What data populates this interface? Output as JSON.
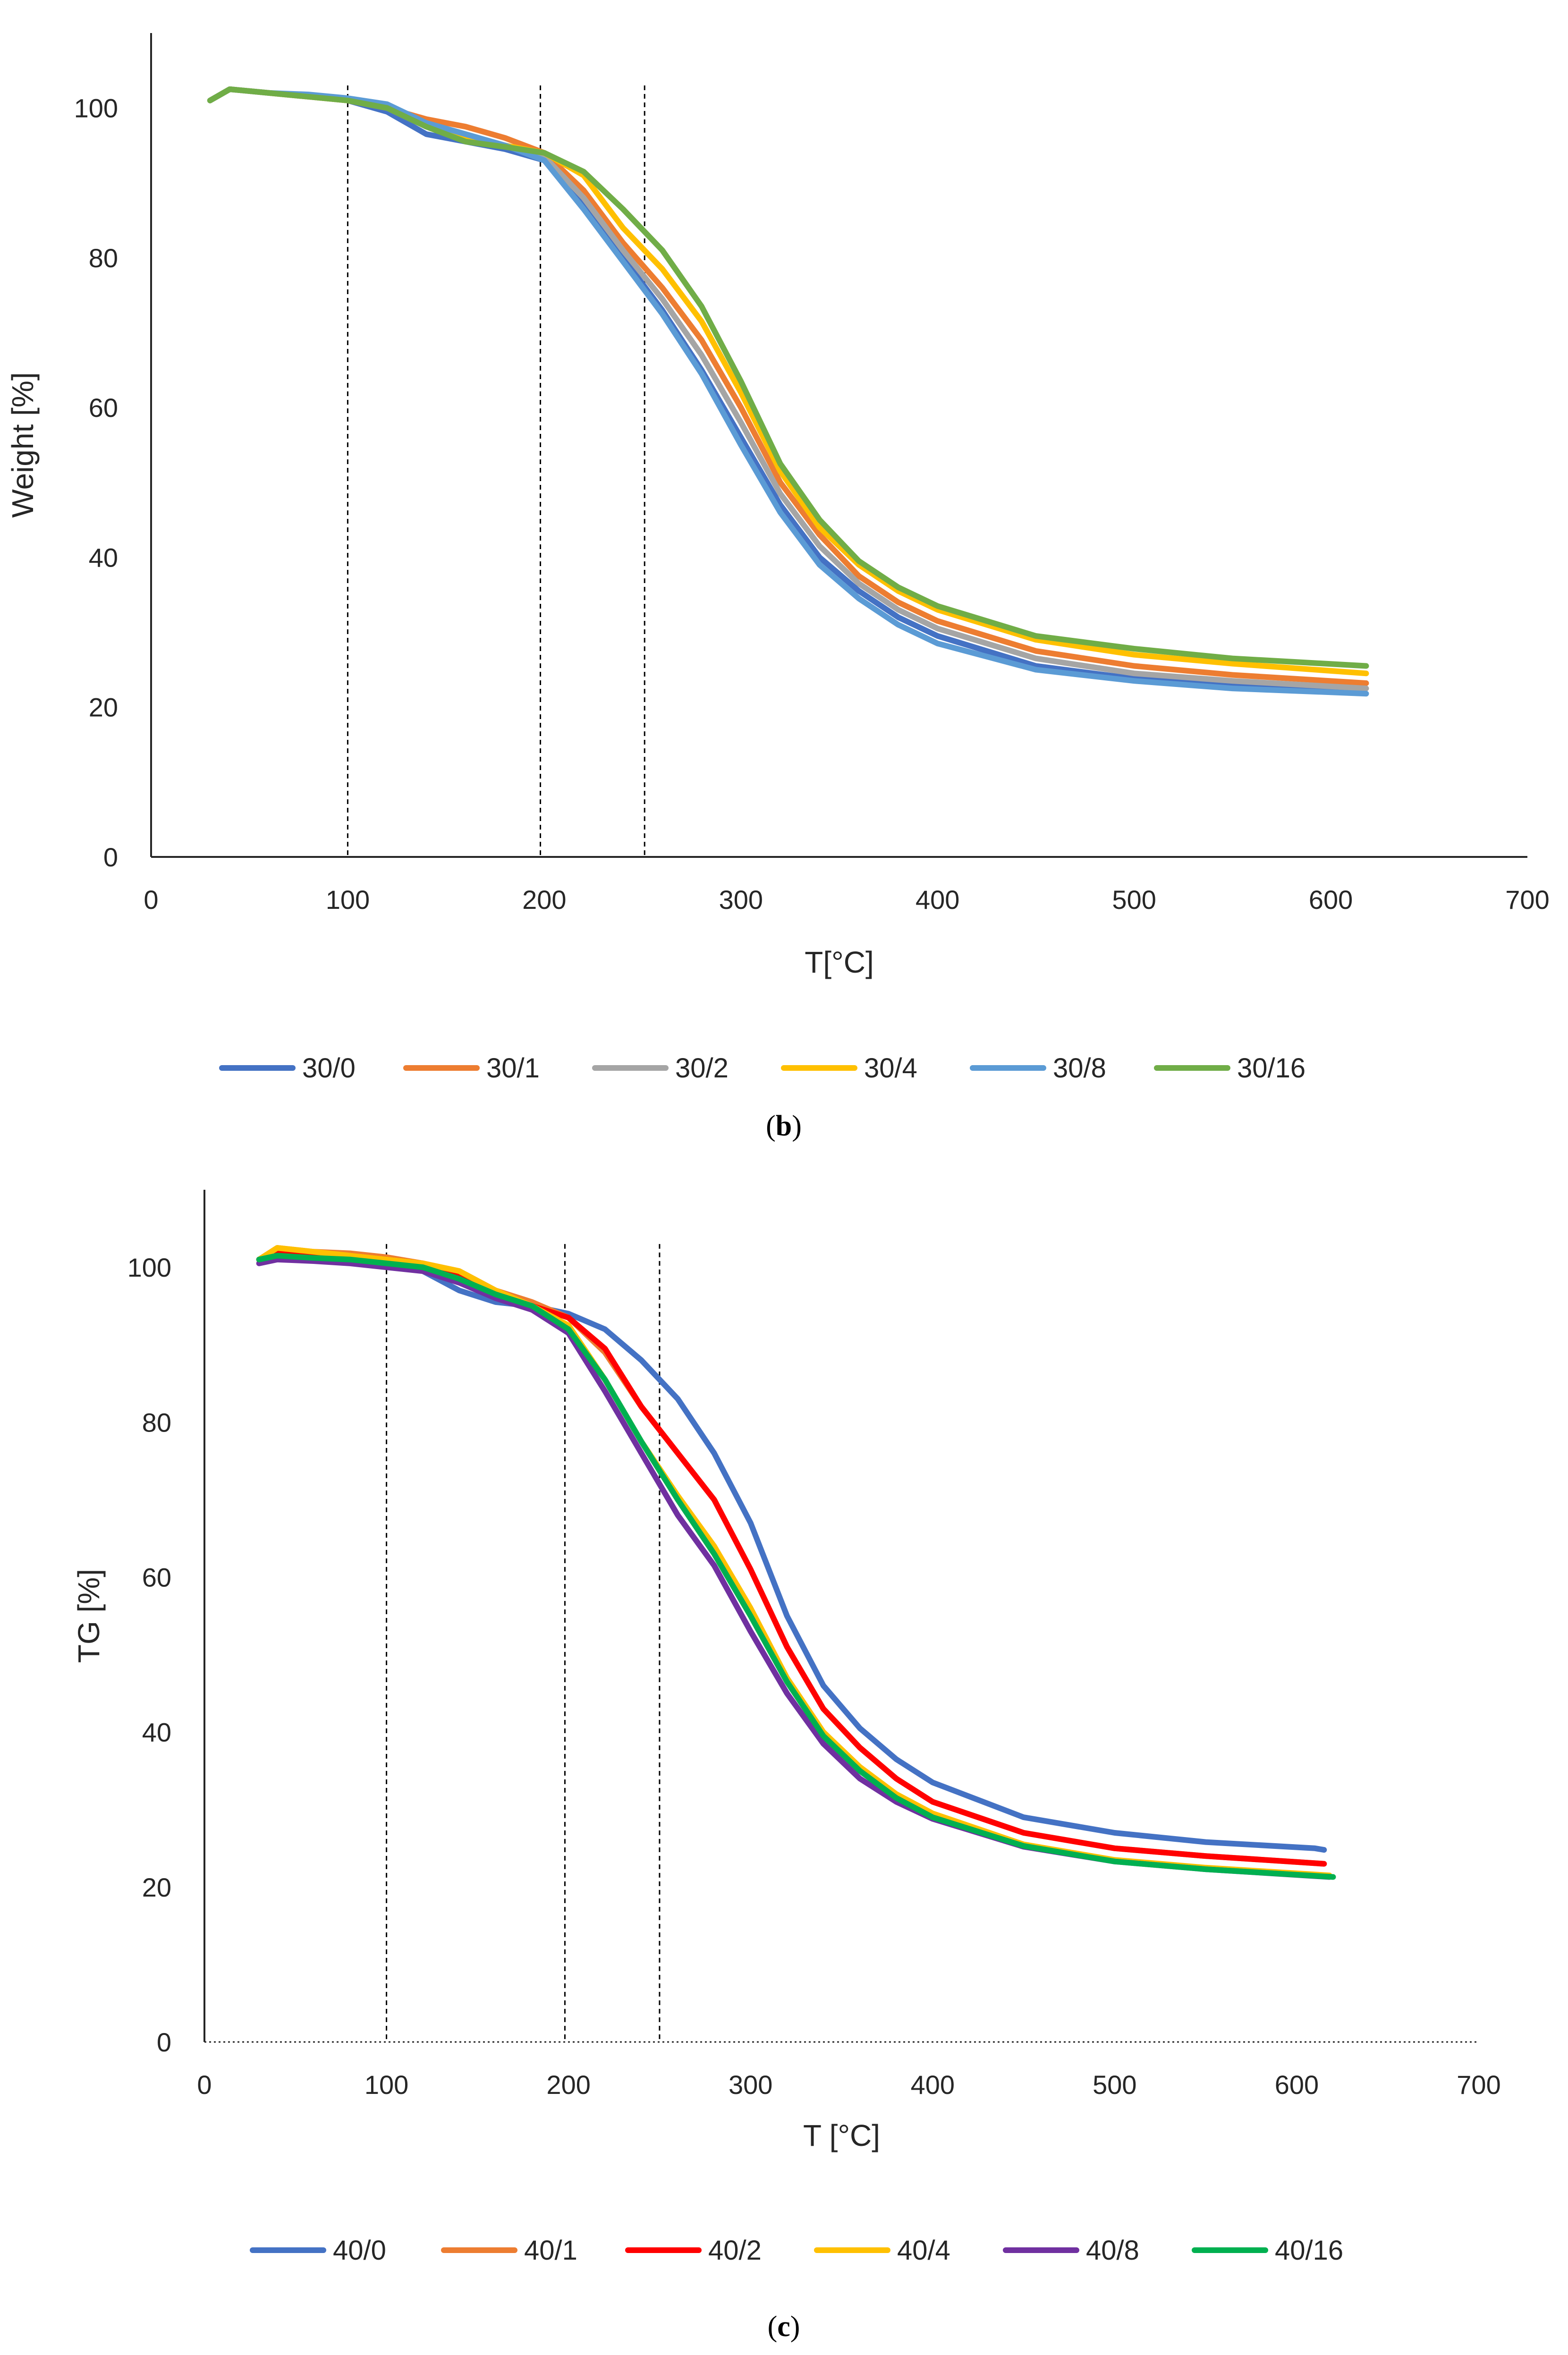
{
  "chart_data": [
    {
      "type": "line",
      "caption_letter": "b",
      "xlabel": "T[°C]",
      "ylabel": "Weight [%]",
      "xlim": [
        0,
        700
      ],
      "ylim": [
        0,
        110
      ],
      "x_ticks": [
        0,
        100,
        200,
        300,
        400,
        500,
        600,
        700
      ],
      "y_ticks": [
        0,
        20,
        40,
        60,
        80,
        100
      ],
      "grid": false,
      "legend": "bottom",
      "vertical_markers": [
        100,
        198,
        251
      ],
      "series": [
        {
          "name": "30/0",
          "color": "#4472C4",
          "x": [
            30,
            40,
            60,
            80,
            100,
            120,
            140,
            160,
            180,
            200,
            220,
            240,
            260,
            280,
            300,
            320,
            340,
            360,
            380,
            400,
            450,
            500,
            550,
            615
          ],
          "y": [
            101.0,
            102.5,
            102.0,
            101.5,
            101.0,
            99.5,
            96.5,
            95.5,
            94.5,
            93.0,
            87.0,
            80.0,
            73.0,
            65.0,
            56.0,
            47.0,
            40.0,
            35.5,
            32.0,
            29.5,
            25.5,
            23.8,
            22.8,
            22.0
          ]
        },
        {
          "name": "30/1",
          "color": "#ED7D31",
          "x": [
            30,
            40,
            60,
            80,
            100,
            120,
            140,
            160,
            180,
            200,
            220,
            240,
            260,
            280,
            300,
            320,
            340,
            360,
            380,
            400,
            450,
            500,
            550,
            618
          ],
          "y": [
            101.0,
            102.5,
            102.0,
            101.5,
            101.0,
            100.0,
            98.5,
            97.5,
            96.0,
            94.0,
            89.0,
            82.0,
            76.0,
            69.0,
            60.0,
            50.0,
            43.0,
            37.5,
            34.0,
            31.5,
            27.5,
            25.5,
            24.3,
            23.2
          ]
        },
        {
          "name": "30/2",
          "color": "#A5A5A5",
          "x": [
            30,
            40,
            60,
            80,
            100,
            120,
            140,
            160,
            180,
            200,
            220,
            240,
            260,
            280,
            300,
            320,
            340,
            360,
            380,
            400,
            450,
            500,
            550,
            618
          ],
          "y": [
            101.0,
            102.5,
            102.0,
            101.5,
            101.0,
            100.0,
            97.5,
            96.0,
            95.0,
            93.5,
            88.0,
            81.0,
            74.5,
            67.0,
            58.0,
            48.5,
            41.5,
            36.5,
            33.0,
            30.5,
            26.5,
            24.5,
            23.5,
            22.5
          ]
        },
        {
          "name": "30/4",
          "color": "#FFC000",
          "x": [
            30,
            40,
            60,
            80,
            100,
            120,
            140,
            160,
            180,
            200,
            220,
            240,
            260,
            280,
            300,
            320,
            340,
            360,
            380,
            400,
            450,
            500,
            550,
            618
          ],
          "y": [
            101.0,
            102.5,
            102.0,
            101.5,
            101.0,
            100.0,
            98.0,
            96.0,
            95.0,
            94.0,
            91.0,
            84.0,
            78.5,
            71.5,
            62.0,
            51.5,
            44.0,
            39.0,
            35.5,
            33.0,
            29.0,
            27.0,
            25.8,
            24.5
          ]
        },
        {
          "name": "30/8",
          "color": "#5B9BD5",
          "x": [
            30,
            40,
            60,
            80,
            100,
            120,
            140,
            160,
            180,
            200,
            220,
            240,
            260,
            280,
            300,
            320,
            340,
            360,
            380,
            400,
            450,
            500,
            550,
            618
          ],
          "y": [
            101.0,
            102.5,
            102.0,
            101.8,
            101.3,
            100.5,
            98.0,
            96.5,
            95.0,
            93.0,
            86.5,
            79.5,
            72.5,
            64.5,
            55.0,
            46.0,
            39.0,
            34.5,
            31.0,
            28.5,
            25.0,
            23.5,
            22.5,
            21.8
          ]
        },
        {
          "name": "30/16",
          "color": "#70AD47",
          "x": [
            30,
            40,
            60,
            80,
            100,
            120,
            140,
            160,
            180,
            200,
            220,
            240,
            260,
            280,
            300,
            320,
            340,
            360,
            380,
            400,
            450,
            500,
            550,
            618
          ],
          "y": [
            101.0,
            102.5,
            102.0,
            101.5,
            101.0,
            100.0,
            97.5,
            95.5,
            94.8,
            94.0,
            91.5,
            86.5,
            81.0,
            73.5,
            63.5,
            52.5,
            45.0,
            39.5,
            36.0,
            33.5,
            29.5,
            27.8,
            26.5,
            25.5
          ]
        }
      ]
    },
    {
      "type": "line",
      "caption_letter": "c",
      "xlabel": "T [°C]",
      "ylabel": "TG [%]",
      "xlim": [
        0,
        700
      ],
      "ylim": [
        0,
        110
      ],
      "x_ticks": [
        0,
        100,
        200,
        300,
        400,
        500,
        600,
        700
      ],
      "y_ticks": [
        0,
        20,
        40,
        60,
        80,
        100
      ],
      "grid": false,
      "legend": "bottom",
      "vertical_markers": [
        100,
        198,
        250
      ],
      "series": [
        {
          "name": "40/0",
          "color": "#4472C4",
          "x": [
            30,
            40,
            60,
            80,
            100,
            120,
            140,
            160,
            180,
            200,
            220,
            240,
            260,
            280,
            300,
            320,
            340,
            360,
            380,
            400,
            450,
            500,
            550,
            610,
            615
          ],
          "y": [
            101.0,
            102.0,
            101.5,
            101.0,
            100.5,
            99.5,
            97.0,
            95.5,
            95.0,
            94.0,
            92.0,
            88.0,
            83.0,
            76.0,
            67.0,
            55.0,
            46.0,
            40.5,
            36.5,
            33.5,
            29.0,
            27.0,
            25.8,
            25.0,
            24.8
          ]
        },
        {
          "name": "40/1",
          "color": "#ED7D31",
          "x": [
            30,
            40,
            60,
            80,
            100,
            120,
            140,
            160,
            180,
            200,
            220,
            240,
            260,
            280,
            300,
            320,
            340,
            360,
            380,
            400,
            450,
            500,
            550,
            615
          ],
          "y": [
            101.0,
            102.5,
            102.0,
            101.8,
            101.3,
            100.5,
            99.5,
            97.0,
            95.5,
            93.5,
            89.0,
            82.0,
            76.0,
            70.0,
            61.0,
            51.0,
            43.0,
            38.0,
            34.0,
            31.0,
            27.0,
            25.0,
            24.0,
            23.0
          ]
        },
        {
          "name": "40/2",
          "color": "#FF0000",
          "x": [
            30,
            40,
            60,
            80,
            100,
            120,
            140,
            160,
            180,
            200,
            220,
            240,
            260,
            280,
            300,
            320,
            340,
            360,
            380,
            400,
            450,
            500,
            550,
            615
          ],
          "y": [
            101.0,
            102.0,
            101.8,
            101.5,
            101.0,
            100.5,
            99.0,
            96.5,
            95.0,
            93.5,
            89.5,
            82.0,
            76.0,
            70.0,
            61.0,
            51.0,
            43.0,
            38.0,
            34.0,
            31.0,
            27.0,
            25.0,
            24.0,
            23.0
          ]
        },
        {
          "name": "40/4",
          "color": "#FFC000",
          "x": [
            30,
            40,
            60,
            80,
            100,
            120,
            140,
            160,
            180,
            200,
            220,
            240,
            260,
            280,
            300,
            320,
            340,
            360,
            380,
            400,
            450,
            500,
            550,
            618
          ],
          "y": [
            101.0,
            102.5,
            102.0,
            101.5,
            101.0,
            100.5,
            99.5,
            97.0,
            95.0,
            92.5,
            85.5,
            77.5,
            70.5,
            64.0,
            56.0,
            47.0,
            40.0,
            35.5,
            32.0,
            29.5,
            25.5,
            23.5,
            22.5,
            21.5
          ]
        },
        {
          "name": "40/8",
          "color": "#7030A0",
          "x": [
            30,
            40,
            60,
            80,
            100,
            120,
            140,
            160,
            180,
            200,
            220,
            240,
            260,
            280,
            300,
            320,
            340,
            360,
            380,
            400,
            450,
            500,
            550,
            618
          ],
          "y": [
            100.5,
            101.0,
            100.8,
            100.5,
            100.0,
            99.5,
            98.0,
            96.0,
            94.5,
            91.5,
            84.0,
            76.0,
            68.0,
            61.5,
            53.0,
            45.0,
            38.5,
            34.0,
            31.0,
            28.8,
            25.2,
            23.3,
            22.3,
            21.3
          ]
        },
        {
          "name": "40/16",
          "color": "#00B050",
          "x": [
            30,
            40,
            60,
            80,
            100,
            120,
            140,
            160,
            180,
            200,
            220,
            240,
            260,
            280,
            300,
            320,
            340,
            360,
            380,
            400,
            450,
            500,
            550,
            620
          ],
          "y": [
            101.0,
            101.5,
            101.2,
            101.0,
            100.5,
            100.0,
            98.5,
            96.5,
            95.0,
            92.0,
            85.5,
            77.5,
            70.0,
            63.0,
            55.0,
            46.5,
            39.5,
            35.0,
            31.5,
            29.0,
            25.3,
            23.3,
            22.3,
            21.3
          ]
        }
      ]
    }
  ]
}
